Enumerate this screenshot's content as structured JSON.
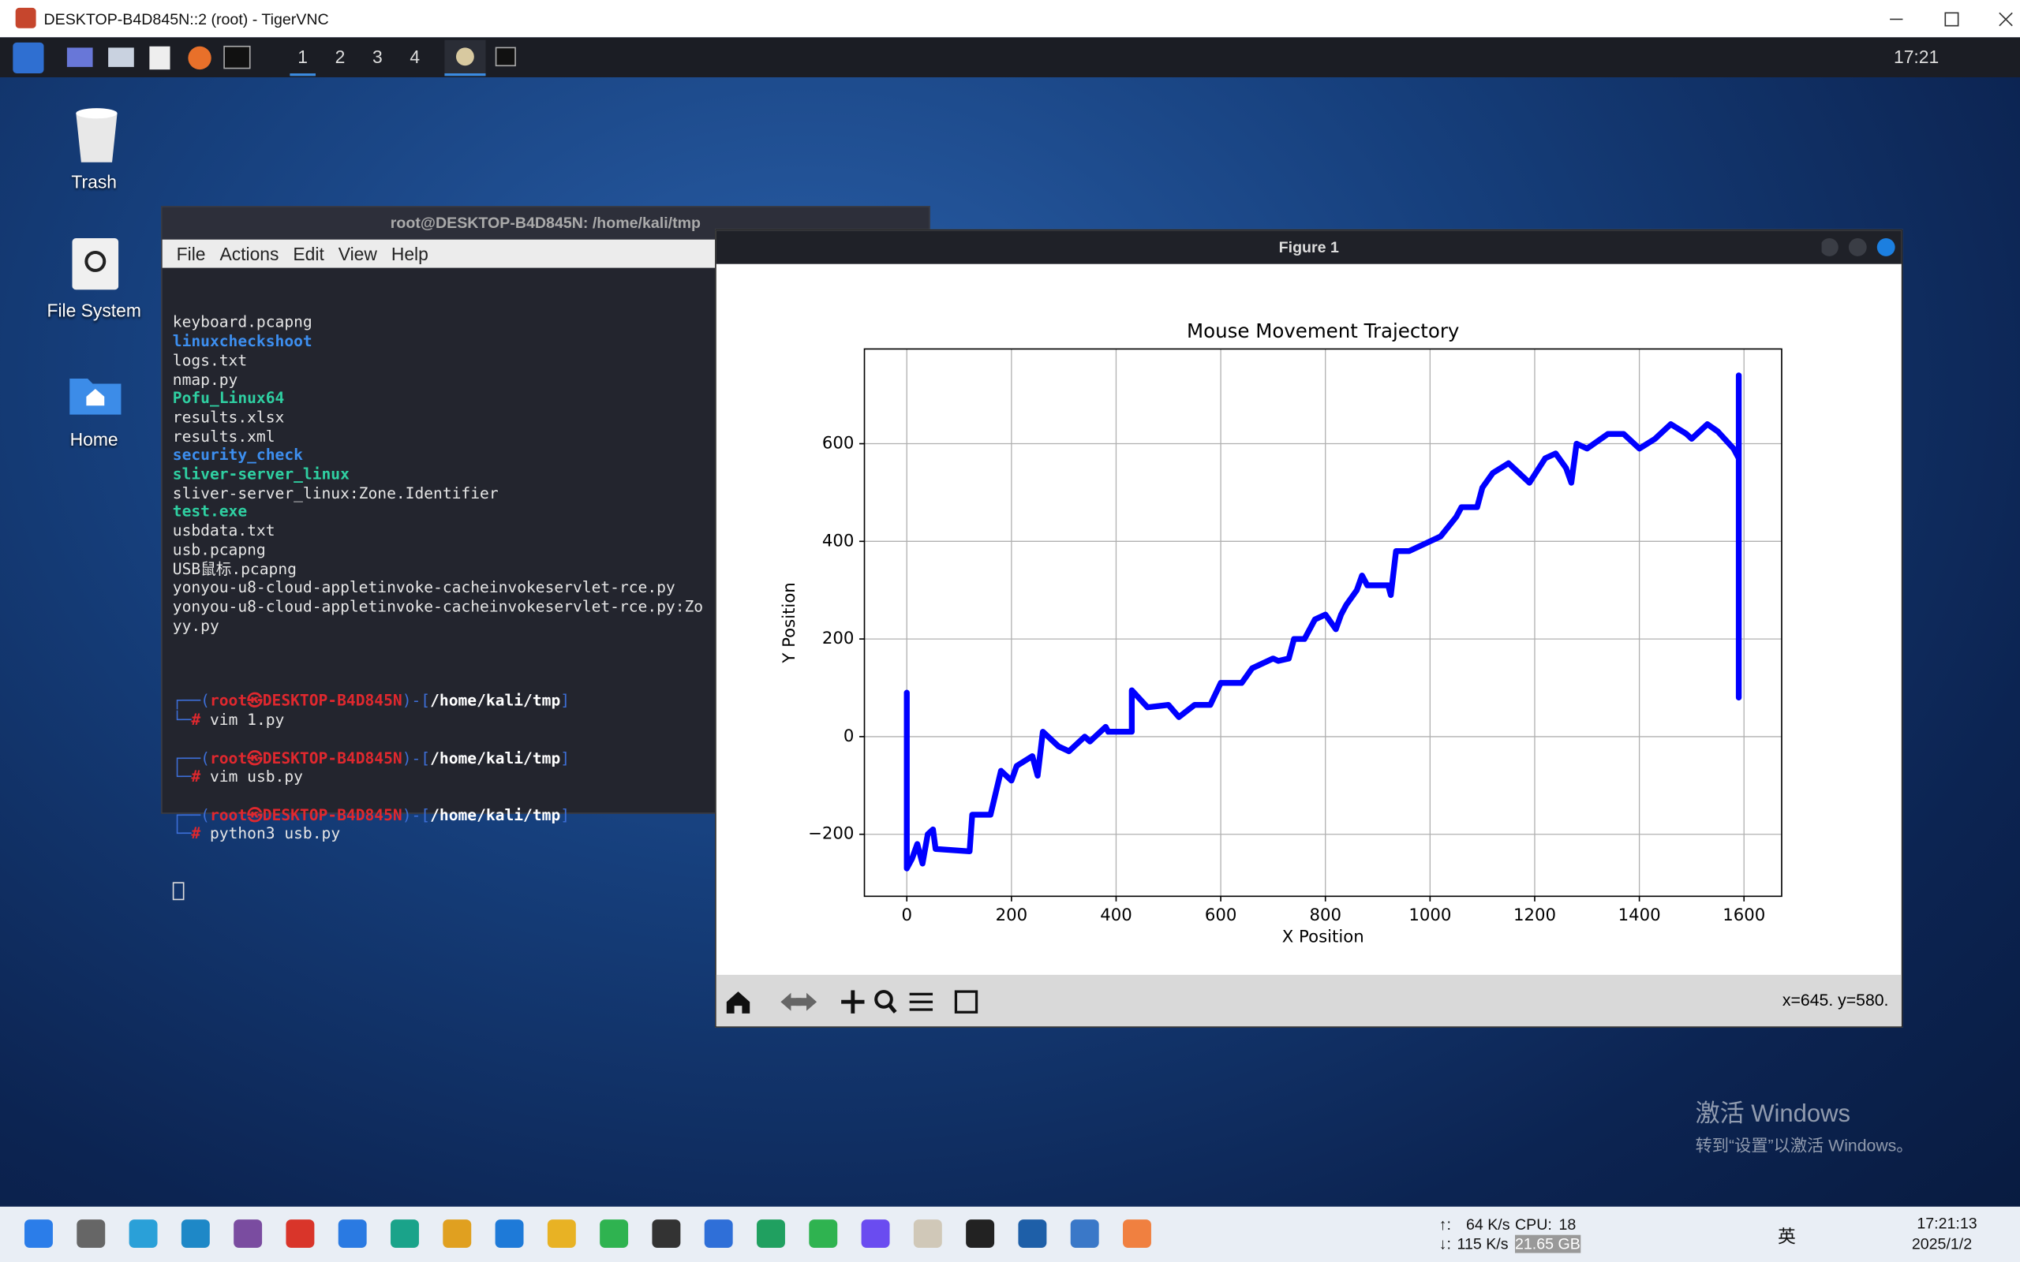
{
  "vnc_window": {
    "title": "DESKTOP-B4D845N::2 (root) - TigerVNC"
  },
  "kali_panel": {
    "workspaces": [
      "1",
      "2",
      "3",
      "4"
    ],
    "clock": "17:21"
  },
  "desktop_icons": [
    "Trash",
    "File System",
    "Home"
  ],
  "terminal": {
    "title": "root@DESKTOP-B4D845N: /home/kali/tmp",
    "menu": [
      "File",
      "Actions",
      "Edit",
      "View",
      "Help"
    ],
    "files": [
      "keyboard.pcapng",
      "linuxcheckshoot",
      "logs.txt",
      "nmap.py",
      "Pofu_Linux64",
      "results.xlsx",
      "results.xml",
      "security_check",
      "sliver-server_linux",
      "sliver-server_linux:Zone.Identifier",
      "test.exe",
      "usbdata.txt",
      "usb.pcapng",
      "USB鼠标.pcapng",
      "yonyou-u8-cloud-appletinvoke-cacheinvokeservlet-rce.py",
      "yonyou-u8-cloud-appletinvoke-cacheinvokeservlet-rce.py:Zo",
      "yy.py"
    ],
    "prompts": [
      {
        "head": [
          "┌──(",
          "root㉿DESKTOP-B4D845N",
          ")-[",
          "/home/kali/tmp",
          "]"
        ],
        "tail": [
          "└─",
          "#",
          " vim 1.py"
        ]
      },
      {
        "head": [
          "┌──(",
          "root㉿DESKTOP-B4D845N",
          ")-[",
          "/home/kali/tmp",
          "]"
        ],
        "tail": [
          "└─",
          "#",
          " vim usb.py"
        ]
      },
      {
        "head": [
          "┌──(",
          "root㉿DESKTOP-B4D845N",
          ")-[",
          "/home/kali/tmp",
          "]"
        ],
        "tail": [
          "└─",
          "#",
          " python3 usb.py"
        ]
      }
    ]
  },
  "figure": {
    "title": "Figure 1",
    "status": "x=645. y=580."
  },
  "chart_data": {
    "type": "line",
    "title": "Mouse Movement Trajectory",
    "x_label": "X Position",
    "y_label": "Y Position",
    "x": [
      0,
      0,
      10,
      20,
      30,
      40,
      50,
      55,
      120,
      125,
      160,
      180,
      200,
      210,
      240,
      250,
      260,
      290,
      310,
      340,
      350,
      380,
      385,
      430,
      430,
      460,
      500,
      520,
      550,
      580,
      600,
      640,
      660,
      700,
      710,
      730,
      740,
      760,
      780,
      800,
      820,
      830,
      840,
      860,
      870,
      880,
      920,
      925,
      935,
      960,
      1000,
      1020,
      1050,
      1060,
      1090,
      1100,
      1120,
      1150,
      1170,
      1190,
      1220,
      1240,
      1260,
      1270,
      1280,
      1300,
      1340,
      1370,
      1400,
      1430,
      1460,
      1490,
      1500,
      1530,
      1550,
      1580,
      1590,
      1590,
      1590
    ],
    "series": [
      {
        "color": "#0000ff",
        "values": [
          90,
          -270,
          -250,
          -220,
          -260,
          -200,
          -190,
          -230,
          -235,
          -160,
          -160,
          -70,
          -90,
          -60,
          -40,
          -80,
          10,
          -20,
          -30,
          0,
          -10,
          20,
          10,
          10,
          95,
          60,
          65,
          40,
          65,
          65,
          110,
          110,
          140,
          160,
          155,
          160,
          200,
          200,
          240,
          250,
          220,
          250,
          270,
          300,
          330,
          310,
          310,
          290,
          380,
          380,
          400,
          410,
          450,
          470,
          470,
          510,
          540,
          560,
          540,
          520,
          570,
          580,
          550,
          520,
          600,
          590,
          620,
          620,
          590,
          610,
          640,
          620,
          610,
          640,
          625,
          590,
          570,
          740,
          80
        ]
      }
    ],
    "xlim": [
      -81,
      1672
    ],
    "ylim": [
      -327,
      794
    ],
    "xticks": [
      0,
      200,
      400,
      600,
      800,
      1000,
      1200,
      1400,
      1600
    ],
    "yticks": [
      {
        "value": -200,
        "label": "−200"
      },
      0,
      200,
      400,
      600
    ],
    "grid": true
  },
  "watermark": {
    "title": "激活 Windows",
    "text": "转到“设置”以激活 Windows。"
  },
  "taskbar": {
    "up": "↑:",
    "up_rate": "64 K/s",
    "down": "↓:",
    "down_rate": "115 K/s",
    "cpu": "CPU:",
    "cpu_value": "18",
    "mem": "21.65 GB",
    "ime": "英",
    "time": "17:21:13",
    "date": "2025/1/2"
  }
}
